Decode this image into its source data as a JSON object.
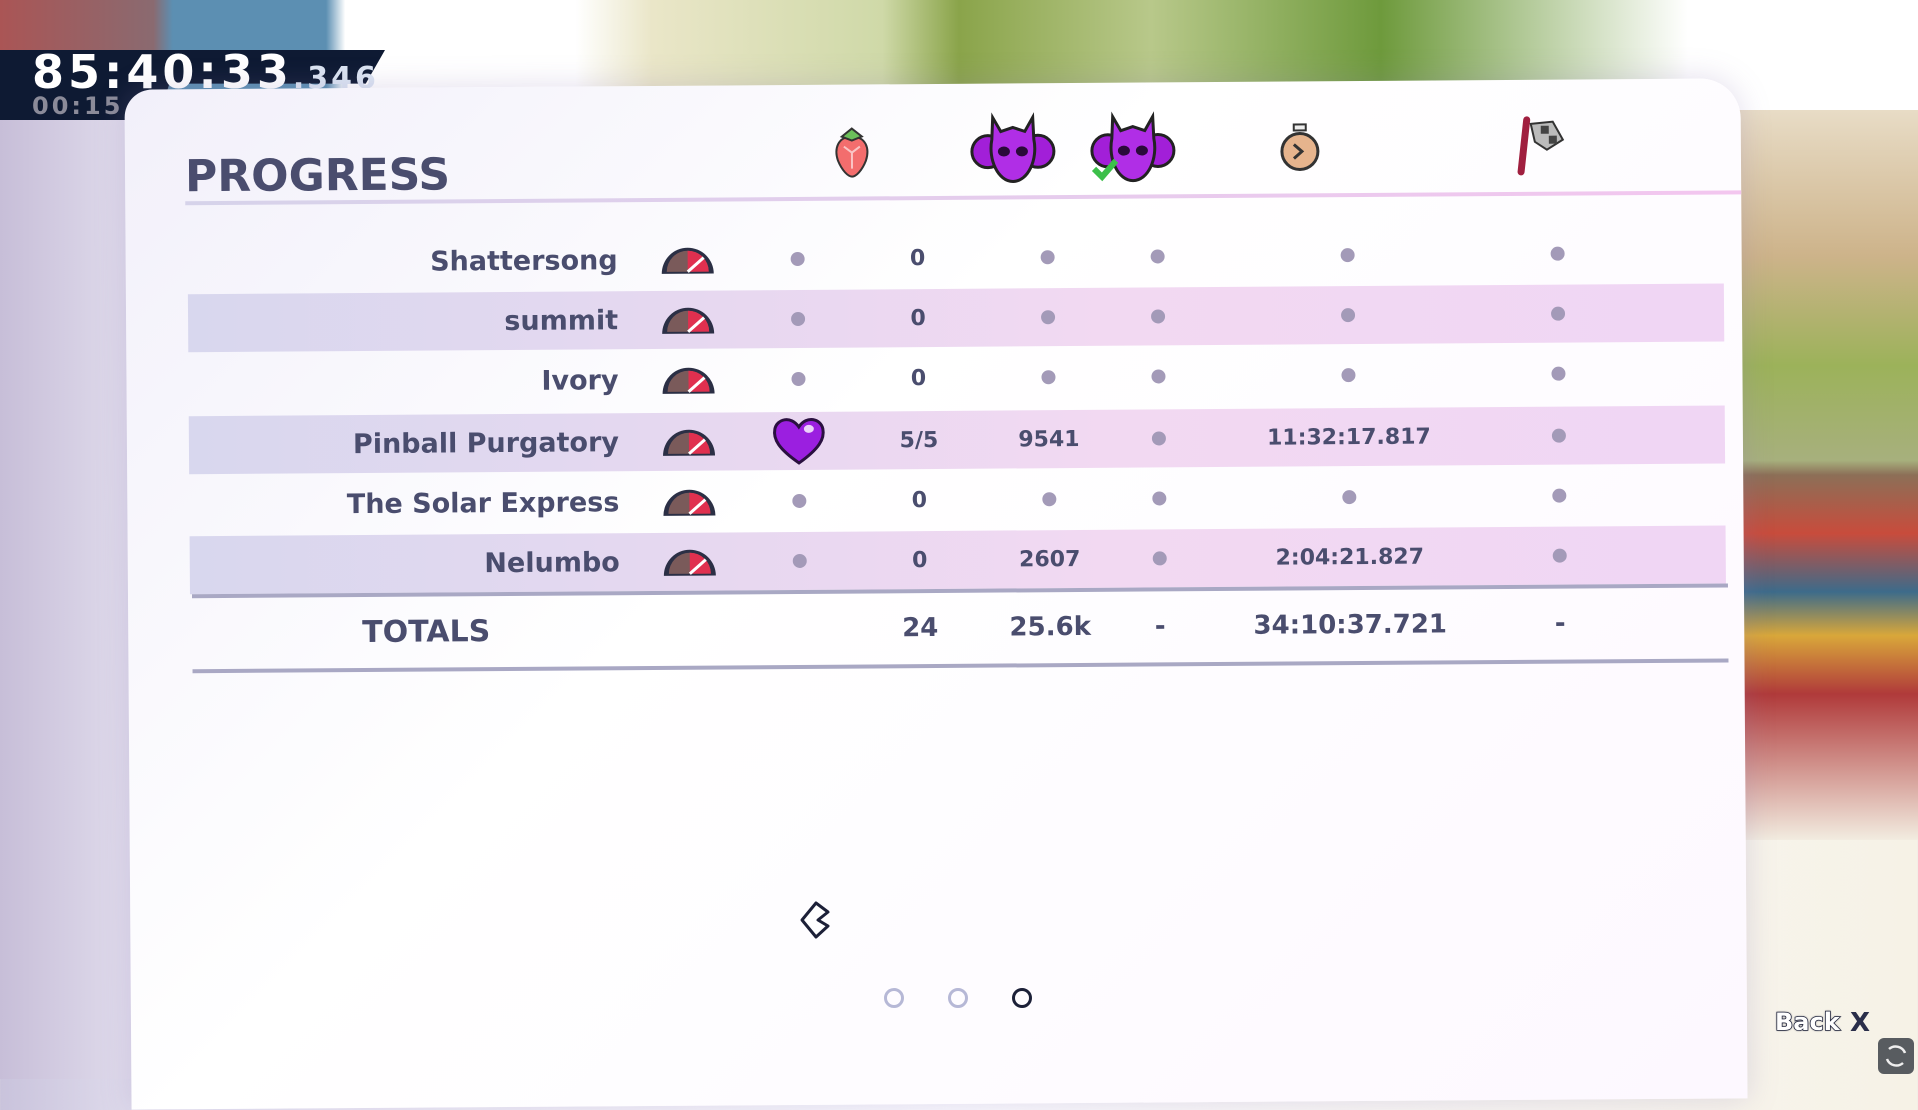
{
  "speedrun_timer": {
    "main": "85:40:33",
    "ms": ".346",
    "chapter": "00:15"
  },
  "progress": {
    "title": "PROGRESS",
    "column_icons": [
      "heart-icon",
      "strawberry-icon",
      "deaths-skull-icon",
      "deathless-skull-check-icon",
      "stopwatch-icon",
      "checkered-flag-icon"
    ],
    "rows": [
      {
        "name": "Shattersong",
        "heart": false,
        "strawberries": "0",
        "deaths": null,
        "deathless": null,
        "time": null,
        "flag": null
      },
      {
        "name": "summit",
        "heart": false,
        "strawberries": "0",
        "deaths": null,
        "deathless": null,
        "time": null,
        "flag": null
      },
      {
        "name": "Ivory",
        "heart": false,
        "strawberries": "0",
        "deaths": null,
        "deathless": null,
        "time": null,
        "flag": null
      },
      {
        "name": "Pinball Purgatory",
        "heart": true,
        "strawberries": "5/5",
        "deaths": "9541",
        "deathless": null,
        "time": "11:32:17.817",
        "flag": null
      },
      {
        "name": "The Solar Express",
        "heart": false,
        "strawberries": "0",
        "deaths": null,
        "deathless": null,
        "time": null,
        "flag": null
      },
      {
        "name": "Nelumbo",
        "heart": false,
        "strawberries": "0",
        "deaths": "2607",
        "deathless": null,
        "time": "2:04:21.827",
        "flag": null
      }
    ],
    "totals": {
      "label": "TOTALS",
      "strawberries": "24",
      "deaths": "25.6k",
      "deathless": "-",
      "time": "34:10:37.721",
      "flag": "-"
    }
  },
  "pagination": {
    "pages": 3,
    "current": 3
  },
  "footer": {
    "back_label": "Back",
    "back_key": "X"
  },
  "colors": {
    "text": "#4a4d6e",
    "heart": "#9b1fe0",
    "dot": "#a39ab8",
    "band": "#e3dcf2"
  }
}
